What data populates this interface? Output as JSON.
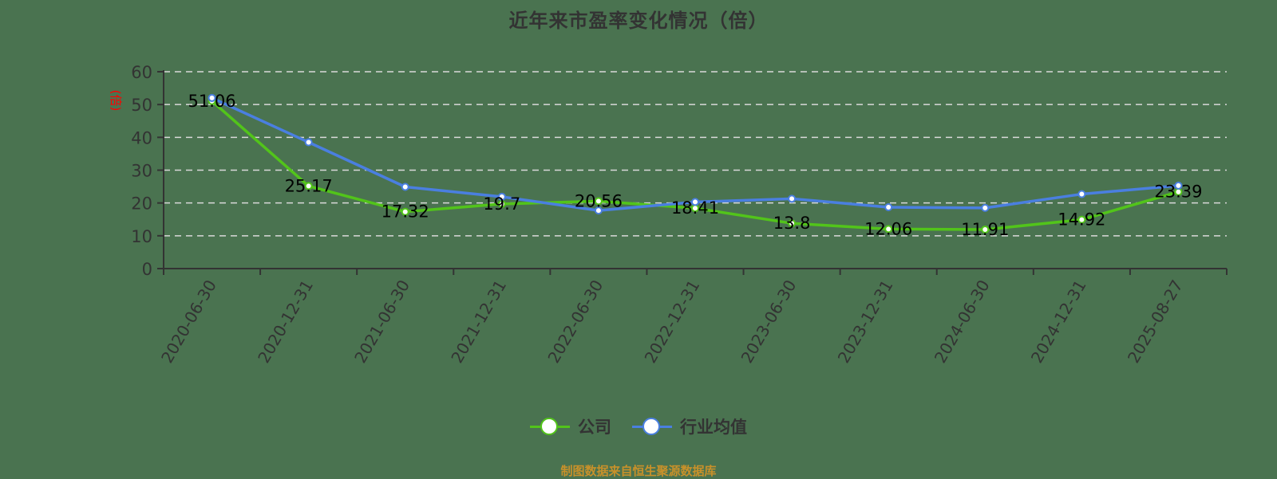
{
  "title": "近年来市盈率变化情况（倍）",
  "footer": "制图数据来自恒生聚源数据库",
  "colors": {
    "background": "#4a7350",
    "company": "#52c41a",
    "industry": "#4a7fe0",
    "axis": "#333333",
    "grid": "#d9d9d9",
    "ylabel": "#ff0000",
    "footer": "#c8912a"
  },
  "legend": [
    {
      "name": "公司",
      "color": "#52c41a"
    },
    {
      "name": "行业均值",
      "color": "#4a7fe0"
    }
  ],
  "chart_data": {
    "type": "line",
    "title": "近年来市盈率变化情况（倍）",
    "xlabel": "",
    "ylabel": "(倍)",
    "ylim": [
      0,
      60
    ],
    "yticks": [
      0,
      10,
      20,
      30,
      40,
      50,
      60
    ],
    "grid": true,
    "legend_position": "bottom",
    "categories": [
      "2020-06-30",
      "2020-12-31",
      "2021-06-30",
      "2021-12-31",
      "2022-06-30",
      "2022-12-31",
      "2023-06-30",
      "2023-12-31",
      "2024-06-30",
      "2024-12-31",
      "2025-08-27"
    ],
    "series": [
      {
        "name": "公司",
        "values": [
          51.06,
          25.17,
          17.32,
          19.7,
          20.56,
          18.41,
          13.8,
          12.06,
          11.91,
          14.92,
          23.39
        ],
        "labels_shown": true
      },
      {
        "name": "行业均值",
        "values": [
          52.0,
          38.5,
          24.9,
          21.9,
          17.7,
          20.3,
          21.3,
          18.7,
          18.5,
          22.7,
          25.3
        ],
        "labels_shown": false
      }
    ]
  }
}
